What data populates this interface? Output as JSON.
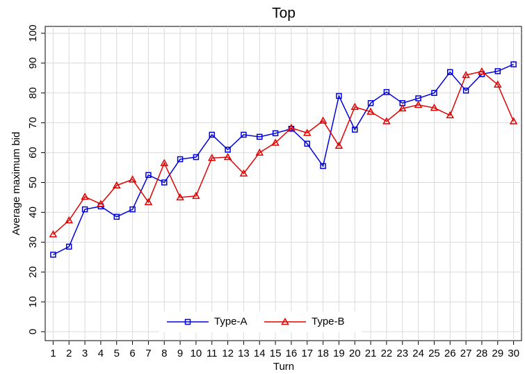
{
  "chart_data": {
    "type": "line",
    "title": "Top",
    "xlabel": "Turn",
    "ylabel": "Average maximum bid",
    "x": [
      1,
      2,
      3,
      4,
      5,
      6,
      7,
      8,
      9,
      10,
      11,
      12,
      13,
      14,
      15,
      16,
      17,
      18,
      19,
      20,
      21,
      22,
      23,
      24,
      25,
      26,
      27,
      28,
      29,
      30
    ],
    "xlim": [
      0.5,
      30.5
    ],
    "xticks": [
      1,
      2,
      3,
      4,
      5,
      6,
      7,
      8,
      9,
      10,
      11,
      12,
      13,
      14,
      15,
      16,
      17,
      18,
      19,
      20,
      21,
      22,
      23,
      24,
      25,
      26,
      27,
      28,
      29,
      30
    ],
    "ylim": [
      -3,
      102.3
    ],
    "yticks": [
      0,
      10,
      20,
      30,
      40,
      50,
      60,
      70,
      80,
      90,
      100
    ],
    "grid": true,
    "legend": "bottom",
    "series": [
      {
        "name": "Type-A",
        "color": "#0000dd",
        "marker": "square",
        "values": [
          25.8,
          28.5,
          41,
          42,
          38.5,
          41,
          52.5,
          50,
          57.8,
          58.5,
          66,
          61,
          66,
          65.3,
          66.5,
          68,
          63,
          55.5,
          79,
          67.7,
          76.6,
          80.3,
          76.6,
          78.2,
          80,
          87,
          80.8,
          86.3,
          87.3,
          89.6
        ]
      },
      {
        "name": "Type-B",
        "color": "#e00000",
        "marker": "triangle",
        "values": [
          32.6,
          37.3,
          45.2,
          42.8,
          49,
          51,
          43.4,
          56.5,
          45,
          45.5,
          58.2,
          58.5,
          53,
          60,
          63.3,
          68.3,
          66.6,
          70.7,
          62.3,
          75.3,
          73.7,
          70.5,
          74.8,
          76,
          75,
          72.5,
          86,
          87.2,
          82.8,
          70.5
        ]
      }
    ]
  }
}
